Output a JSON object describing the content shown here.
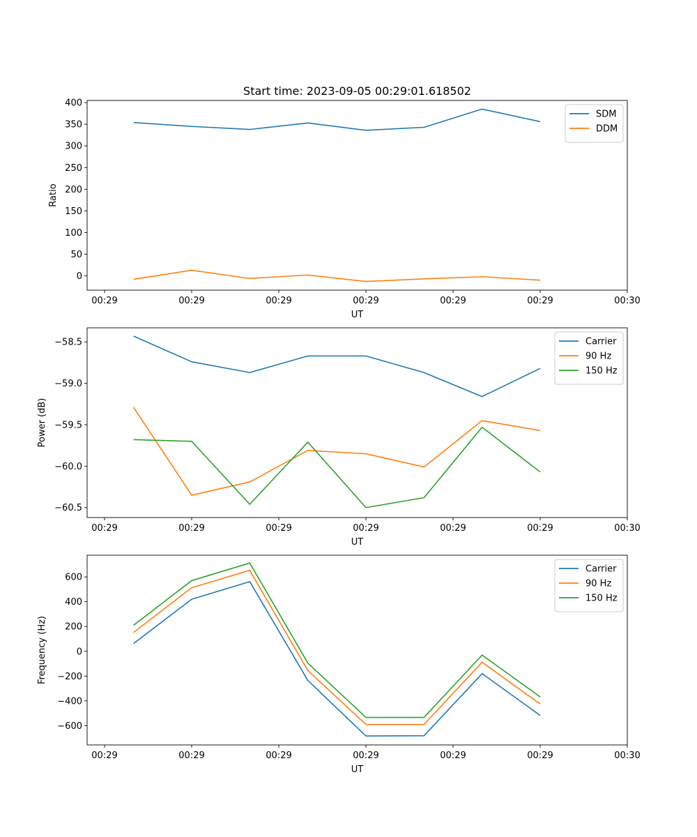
{
  "chart_data": [
    {
      "type": "line",
      "title": "Start time: 2023-09-05 00:29:01.618502",
      "xlabel": "UT",
      "ylabel": "Ratio",
      "x": [
        1,
        2,
        3,
        4,
        5,
        6,
        7,
        8
      ],
      "xlim": [
        0.2,
        9.5
      ],
      "xticks": [
        0.5,
        2,
        3.5,
        5,
        6.5,
        8,
        9.5
      ],
      "xtick_labels": [
        "00:29",
        "00:29",
        "00:29",
        "00:29",
        "00:29",
        "00:29",
        "00:30"
      ],
      "ylim": [
        -33,
        405
      ],
      "yticks": [
        0,
        50,
        100,
        150,
        200,
        250,
        300,
        350,
        400
      ],
      "ytick_labels": [
        "0",
        "50",
        "100",
        "150",
        "200",
        "250",
        "300",
        "350",
        "400"
      ],
      "legend_position": "top-right",
      "series": [
        {
          "name": "SDM",
          "color": "#1f77b4",
          "values": [
            354,
            345,
            338,
            353,
            336,
            343,
            385,
            356
          ]
        },
        {
          "name": "DDM",
          "color": "#ff7f0e",
          "values": [
            -8,
            13,
            -6,
            2,
            -13,
            -7,
            -2,
            -10
          ]
        }
      ]
    },
    {
      "type": "line",
      "title": "",
      "xlabel": "UT",
      "ylabel": "Power (dB)",
      "x": [
        1,
        2,
        3,
        4,
        5,
        6,
        7,
        8
      ],
      "xlim": [
        0.2,
        9.5
      ],
      "xticks": [
        0.5,
        2,
        3.5,
        5,
        6.5,
        8,
        9.5
      ],
      "xtick_labels": [
        "00:29",
        "00:29",
        "00:29",
        "00:29",
        "00:29",
        "00:29",
        "00:30"
      ],
      "ylim": [
        -60.62,
        -58.33
      ],
      "yticks": [
        -60.5,
        -60.0,
        -59.5,
        -59.0,
        -58.5
      ],
      "ytick_labels": [
        "−60.5",
        "−60.0",
        "−59.5",
        "−59.0",
        "−58.5"
      ],
      "legend_position": "top-right",
      "series": [
        {
          "name": "Carrier",
          "color": "#1f77b4",
          "values": [
            -58.43,
            -58.74,
            -58.87,
            -58.67,
            -58.67,
            -58.87,
            -59.16,
            -58.82
          ]
        },
        {
          "name": "90 Hz",
          "color": "#ff7f0e",
          "values": [
            -59.29,
            -60.35,
            -60.19,
            -59.81,
            -59.85,
            -60.01,
            -59.45,
            -59.57
          ]
        },
        {
          "name": "150 Hz",
          "color": "#2ca02c",
          "values": [
            -59.68,
            -59.7,
            -60.46,
            -59.71,
            -60.5,
            -60.38,
            -59.53,
            -60.07
          ]
        }
      ]
    },
    {
      "type": "line",
      "title": "",
      "xlabel": "UT",
      "ylabel": "Frequency (Hz)",
      "x": [
        1,
        2,
        3,
        4,
        5,
        6,
        7,
        8
      ],
      "xlim": [
        0.2,
        9.5
      ],
      "xticks": [
        0.5,
        2,
        3.5,
        5,
        6.5,
        8,
        9.5
      ],
      "xtick_labels": [
        "00:29",
        "00:29",
        "00:29",
        "00:29",
        "00:29",
        "00:29",
        "00:30"
      ],
      "ylim": [
        -755,
        775
      ],
      "yticks": [
        -600,
        -400,
        -200,
        0,
        200,
        400,
        600
      ],
      "ytick_labels": [
        "−600",
        "−400",
        "−200",
        "0",
        "200",
        "400",
        "600"
      ],
      "legend_position": "top-right",
      "series": [
        {
          "name": "Carrier",
          "color": "#1f77b4",
          "values": [
            63,
            420,
            562,
            -235,
            -683,
            -681,
            -180,
            -517
          ]
        },
        {
          "name": "90 Hz",
          "color": "#ff7f0e",
          "values": [
            152,
            513,
            653,
            -155,
            -590,
            -590,
            -88,
            -425
          ]
        },
        {
          "name": "150 Hz",
          "color": "#2ca02c",
          "values": [
            210,
            570,
            712,
            -95,
            -533,
            -533,
            -30,
            -368
          ]
        }
      ]
    }
  ]
}
